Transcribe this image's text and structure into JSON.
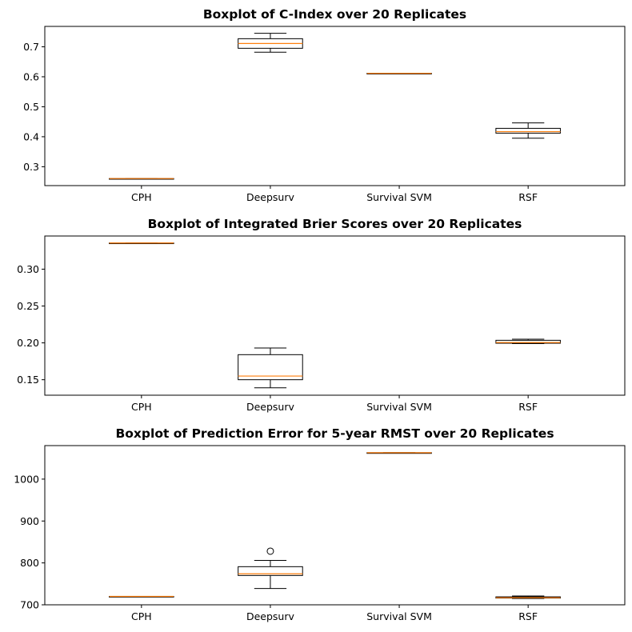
{
  "chart_data": [
    {
      "type": "box",
      "title": "Boxplot of C-Index over 20 Replicates",
      "xlabel": "",
      "ylabel": "",
      "categories": [
        "CPH",
        "Deepsurv",
        "Survival SVM",
        "RSF"
      ],
      "ylim": [
        0.237,
        0.768
      ],
      "yticks": [
        0.3,
        0.4,
        0.5,
        0.6,
        0.7
      ],
      "ytick_labels": [
        "0.3",
        "0.4",
        "0.5",
        "0.6",
        "0.7"
      ],
      "grid": false,
      "boxes": [
        {
          "min": 0.2605,
          "q1": 0.2605,
          "median": 0.2605,
          "q3": 0.2605,
          "max": 0.2605,
          "outliers": []
        },
        {
          "min": 0.682,
          "q1": 0.695,
          "median": 0.711,
          "q3": 0.727,
          "max": 0.745,
          "outliers": []
        },
        {
          "min": 0.6115,
          "q1": 0.6115,
          "median": 0.6115,
          "q3": 0.6115,
          "max": 0.6115,
          "outliers": []
        },
        {
          "min": 0.395,
          "q1": 0.412,
          "median": 0.417,
          "q3": 0.428,
          "max": 0.446,
          "outliers": []
        }
      ]
    },
    {
      "type": "box",
      "title": "Boxplot of Integrated Brier Scores over 20 Replicates",
      "xlabel": "",
      "ylabel": "",
      "categories": [
        "CPH",
        "Deepsurv",
        "Survival SVM",
        "RSF"
      ],
      "ylim": [
        0.129,
        0.345
      ],
      "yticks": [
        0.15,
        0.2,
        0.25,
        0.3
      ],
      "ytick_labels": [
        "0.15",
        "0.20",
        "0.25",
        "0.30"
      ],
      "grid": false,
      "boxes": [
        {
          "min": 0.3355,
          "q1": 0.3355,
          "median": 0.3355,
          "q3": 0.3355,
          "max": 0.3355,
          "outliers": []
        },
        {
          "min": 0.139,
          "q1": 0.15,
          "median": 0.155,
          "q3": 0.184,
          "max": 0.193,
          "outliers": []
        },
        null,
        {
          "min": 0.199,
          "q1": 0.1995,
          "median": 0.2005,
          "q3": 0.2035,
          "max": 0.205,
          "outliers": []
        }
      ]
    },
    {
      "type": "box",
      "title": "Boxplot of Prediction Error for 5-year RMST over 20 Replicates",
      "xlabel": "",
      "ylabel": "",
      "categories": [
        "CPH",
        "Deepsurv",
        "Survival SVM",
        "RSF"
      ],
      "ylim": [
        700,
        1080
      ],
      "yticks": [
        700,
        800,
        900,
        1000
      ],
      "ytick_labels": [
        "700",
        "800",
        "900",
        "1000"
      ],
      "grid": false,
      "boxes": [
        {
          "min": 720,
          "q1": 720,
          "median": 720,
          "q3": 720,
          "max": 720,
          "outliers": []
        },
        {
          "min": 739,
          "q1": 770,
          "median": 774,
          "q3": 791,
          "max": 806,
          "outliers": [
            828
          ]
        },
        {
          "min": 1063,
          "q1": 1063,
          "median": 1063,
          "q3": 1063,
          "max": 1063,
          "outliers": []
        },
        {
          "min": 715,
          "q1": 716,
          "median": 717,
          "q3": 719,
          "max": 721,
          "outliers": []
        }
      ]
    }
  ],
  "colors": {
    "box": "#000000",
    "median": "#ff7f0e",
    "axes": "#000000",
    "background": "#ffffff"
  }
}
